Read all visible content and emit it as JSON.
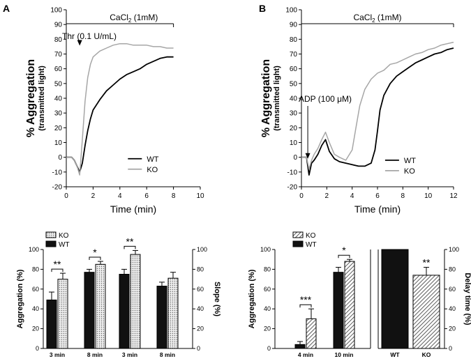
{
  "chart_data": [
    {
      "panel": "A",
      "type": "line",
      "ylabel": "% Aggregation",
      "ylabel_sub": "(transmitted light)",
      "xlabel": "Time (min)",
      "xlim": [
        0,
        10
      ],
      "ylim": [
        -20,
        100
      ],
      "xticks": [
        0,
        2,
        4,
        6,
        8,
        10
      ],
      "yticks": [
        -20,
        -10,
        0,
        10,
        20,
        30,
        40,
        50,
        60,
        70,
        80,
        90,
        100
      ],
      "treatment_bar_label": "CaCl",
      "treatment_bar_sub": "2",
      "treatment_bar_suffix": " (1mM)",
      "treatment_bar_range": [
        0,
        8
      ],
      "arrow_label": "Thr (0.1 U/mL)",
      "arrow_x": 1,
      "series": [
        {
          "name": "WT",
          "color": "#000000",
          "x": [
            0,
            0.2,
            0.4,
            0.6,
            0.8,
            1.0,
            1.2,
            1.4,
            1.6,
            1.8,
            2.0,
            2.5,
            3.0,
            3.5,
            4.0,
            4.5,
            5.0,
            5.5,
            6.0,
            6.5,
            7.0,
            7.5,
            8.0
          ],
          "y": [
            0,
            0,
            0,
            -2,
            -6,
            -10,
            -4,
            8,
            18,
            26,
            32,
            39,
            45,
            49,
            53,
            56,
            58,
            60,
            63,
            65,
            67,
            68,
            68
          ]
        },
        {
          "name": "KO",
          "color": "#a6a6a6",
          "x": [
            0,
            0.2,
            0.4,
            0.6,
            0.8,
            1.0,
            1.2,
            1.4,
            1.6,
            1.8,
            2.0,
            2.5,
            3.0,
            3.5,
            4.0,
            4.5,
            5.0,
            5.5,
            6.0,
            6.5,
            7.0,
            7.5,
            8.0
          ],
          "y": [
            0,
            0,
            0,
            -2,
            -6,
            -12,
            12,
            38,
            54,
            63,
            68,
            72,
            74,
            76,
            77,
            77,
            76,
            76,
            76,
            75,
            75,
            74,
            74
          ]
        }
      ],
      "legend": [
        "WT",
        "KO"
      ]
    },
    {
      "panel": "B",
      "type": "line",
      "ylabel": "% Aggregation",
      "ylabel_sub": "(transmitted light)",
      "xlabel": "Time (min)",
      "xlim": [
        0,
        12
      ],
      "ylim": [
        -20,
        100
      ],
      "xticks": [
        0,
        2,
        4,
        6,
        8,
        10,
        12
      ],
      "yticks": [
        -20,
        -10,
        0,
        10,
        20,
        30,
        40,
        50,
        60,
        70,
        80,
        90,
        100
      ],
      "treatment_bar_label": "CaCl",
      "treatment_bar_sub": "2",
      "treatment_bar_suffix": " (1mM)",
      "treatment_bar_range": [
        0,
        12
      ],
      "arrow_label": "ADP (100 μM)",
      "arrow_x": 0.5,
      "series": [
        {
          "name": "WT",
          "color": "#000000",
          "x": [
            0,
            0.4,
            0.6,
            0.8,
            1.0,
            1.3,
            1.6,
            1.9,
            2.2,
            2.6,
            3.0,
            3.5,
            4.0,
            4.5,
            5.0,
            5.5,
            5.8,
            6.0,
            6.2,
            6.5,
            7.0,
            7.5,
            8.0,
            8.5,
            9.0,
            9.5,
            10.0,
            10.5,
            11.0,
            11.5,
            12.0
          ],
          "y": [
            0,
            0,
            -12,
            -4,
            -2,
            2,
            8,
            12,
            4,
            -1,
            -3,
            -4,
            -5,
            -6,
            -6,
            -4,
            5,
            18,
            32,
            42,
            50,
            55,
            58,
            61,
            64,
            66,
            68,
            70,
            71,
            73,
            74
          ]
        },
        {
          "name": "KO",
          "color": "#a6a6a6",
          "x": [
            0,
            0.4,
            0.6,
            0.8,
            1.0,
            1.3,
            1.6,
            1.9,
            2.2,
            2.6,
            3.0,
            3.5,
            4.0,
            4.3,
            4.6,
            5.0,
            5.5,
            6.0,
            6.5,
            7.0,
            7.5,
            8.0,
            8.5,
            9.0,
            9.5,
            10.0,
            10.5,
            11.0,
            11.5,
            12.0
          ],
          "y": [
            0,
            0,
            -8,
            -2,
            2,
            6,
            12,
            17,
            10,
            2,
            0,
            -2,
            5,
            20,
            35,
            46,
            53,
            57,
            59,
            63,
            64,
            66,
            68,
            70,
            71,
            73,
            74,
            76,
            77,
            78
          ]
        }
      ],
      "legend": [
        "WT",
        "KO"
      ]
    },
    {
      "panel": "A-bars",
      "type": "bar",
      "ylabel_left": "Aggregation (%)",
      "ylabel_right": "Slope (%)",
      "ylim": [
        0,
        100
      ],
      "yticks": [
        0,
        20,
        40,
        60,
        80,
        100
      ],
      "categories": [
        "3 min",
        "8 min",
        "3 min",
        "8 min"
      ],
      "category_axis": [
        "left",
        "left",
        "right",
        "right"
      ],
      "series": [
        {
          "name": "WT",
          "values": [
            49,
            77,
            75,
            63
          ],
          "errors": [
            8,
            3,
            5,
            4
          ]
        },
        {
          "name": "KO",
          "values": [
            70,
            85,
            95,
            71
          ],
          "errors": [
            6,
            3,
            4,
            6
          ]
        }
      ],
      "significance": [
        "**",
        "*",
        "**",
        ""
      ],
      "legend": [
        "KO",
        "WT"
      ]
    },
    {
      "panel": "B-bars",
      "type": "bar",
      "ylabel_left": "Aggregation (%)",
      "ylabel_right": "Delay time (%)",
      "ylim": [
        0,
        100
      ],
      "yticks": [
        0,
        20,
        40,
        60,
        80,
        100
      ],
      "left_categories": [
        "4 min",
        "10 min"
      ],
      "series": [
        {
          "name": "WT",
          "values": [
            4,
            77
          ],
          "errors": [
            3,
            5
          ]
        },
        {
          "name": "KO",
          "values": [
            30,
            88
          ],
          "errors": [
            10,
            2
          ]
        }
      ],
      "significance": [
        "***",
        "*"
      ],
      "right_categories": [
        "WT",
        "KO"
      ],
      "right_values": [
        100,
        74
      ],
      "right_errors": [
        0,
        8
      ],
      "right_significance": "**",
      "legend": [
        "KO",
        "WT"
      ]
    }
  ]
}
